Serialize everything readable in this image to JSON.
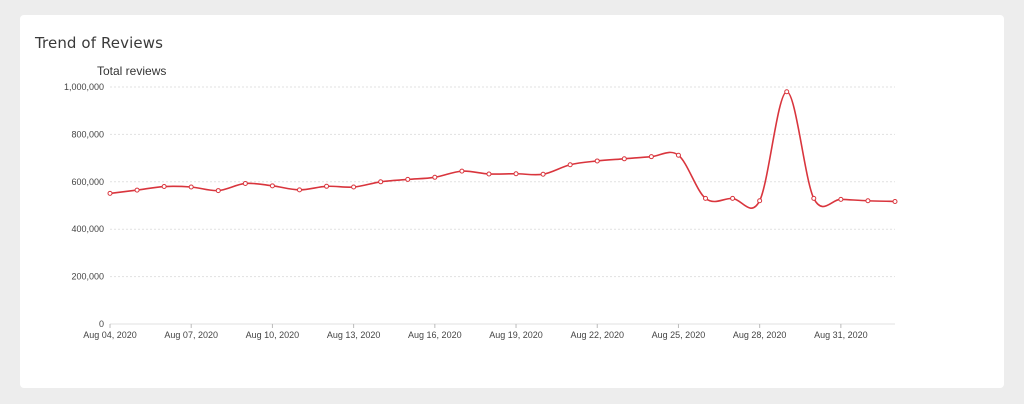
{
  "card": {
    "title": "Trend of Reviews"
  },
  "colors": {
    "line": "#d9353d",
    "grid": "#e1e1e1",
    "point_fill": "#ffffff"
  },
  "chart_data": {
    "type": "line",
    "title": "",
    "ylabel": "Total reviews",
    "xlabel": "",
    "ylim": [
      0,
      1000000
    ],
    "yticks": [
      0,
      200000,
      400000,
      600000,
      800000,
      1000000
    ],
    "ytick_labels": [
      "0",
      "200,000",
      "400,000",
      "600,000",
      "800,000",
      "1,000,000"
    ],
    "xtick_labels": [
      "Aug 04, 2020",
      "Aug 07, 2020",
      "Aug 10, 2020",
      "Aug 13, 2020",
      "Aug 16, 2020",
      "Aug 19, 2020",
      "Aug 22, 2020",
      "Aug 25, 2020",
      "Aug 28, 2020",
      "Aug 31, 2020"
    ],
    "x": [
      "2020-08-04",
      "2020-08-05",
      "2020-08-06",
      "2020-08-07",
      "2020-08-08",
      "2020-08-09",
      "2020-08-10",
      "2020-08-11",
      "2020-08-12",
      "2020-08-13",
      "2020-08-14",
      "2020-08-15",
      "2020-08-16",
      "2020-08-17",
      "2020-08-18",
      "2020-08-19",
      "2020-08-20",
      "2020-08-21",
      "2020-08-22",
      "2020-08-23",
      "2020-08-24",
      "2020-08-25",
      "2020-08-26",
      "2020-08-27",
      "2020-08-28",
      "2020-08-29",
      "2020-08-30",
      "2020-08-31",
      "2020-09-01",
      "2020-09-02"
    ],
    "series": [
      {
        "values": [
          551000,
          565000,
          580000,
          578000,
          563000,
          593000,
          583000,
          566000,
          581000,
          578000,
          600000,
          610000,
          619000,
          645000,
          633000,
          634000,
          632000,
          672000,
          688000,
          697000,
          706000,
          712000,
          530000,
          530000,
          520000,
          980000,
          530000,
          526000,
          520000,
          517000
        ]
      }
    ],
    "grid": true,
    "legend": "none"
  }
}
